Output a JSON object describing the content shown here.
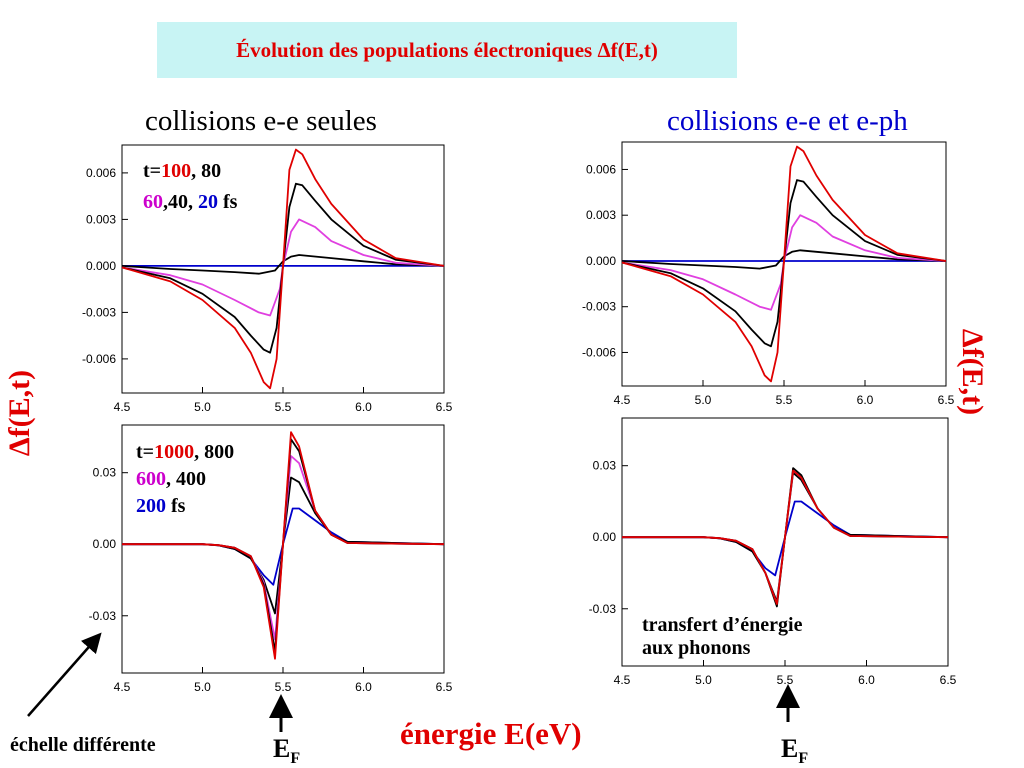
{
  "title": "Évolution des populations électroniques Δf(E,t)",
  "headers": {
    "left": "collisions e-e seules",
    "right": "collisions e-e et e-ph"
  },
  "ylabel": "Δf(E,t)",
  "xlabel": "énergie E(eV)",
  "ef": {
    "main": "E",
    "sub": "F"
  },
  "echelle_note": "échelle différente",
  "transfert_note": [
    "transfert d’énergie",
    "aux phonons"
  ],
  "legends": {
    "top": [
      [
        {
          "t": "t=",
          "c": "#000000"
        },
        {
          "t": "100",
          "c": "#e00000"
        },
        {
          "t": ", 80",
          "c": "#000000"
        }
      ],
      [
        {
          "t": "60",
          "c": "#cc00cc"
        },
        {
          "t": ",40, ",
          "c": "#000000"
        },
        {
          "t": "20",
          "c": "#0000cc"
        },
        {
          "t": " fs",
          "c": "#000000"
        }
      ]
    ],
    "bottom": [
      [
        {
          "t": "t=",
          "c": "#000000"
        },
        {
          "t": "1000",
          "c": "#e00000"
        },
        {
          "t": ", 800",
          "c": "#000000"
        }
      ],
      [
        {
          "t": "600",
          "c": "#cc00cc"
        },
        {
          "t": ", 400",
          "c": "#000000"
        }
      ],
      [
        {
          "t": "200",
          "c": "#0000cc"
        },
        {
          "t": " fs",
          "c": "#000000"
        }
      ]
    ]
  },
  "colors": {
    "red": "#e00000",
    "black": "#000000",
    "magenta": "#e040e0",
    "blue": "#0000cc"
  },
  "chart_data": [
    {
      "id": "top-left",
      "type": "line",
      "xlim": [
        4.5,
        6.5
      ],
      "ylim": [
        -0.0082,
        0.0078
      ],
      "xticks": [
        4.5,
        5.0,
        5.5,
        6.0,
        6.5
      ],
      "xtick_labels": [
        "4.5",
        "5.0",
        "5.5",
        "6.0",
        "6.5"
      ],
      "yticks": [
        0.006,
        0.003,
        0.0,
        -0.003,
        -0.006
      ],
      "ytick_labels": [
        "0.006",
        "0.003",
        "0.000",
        "-0.003",
        "-0.006"
      ],
      "series": [
        {
          "color": "#0000cc",
          "x": [
            4.5,
            5.0,
            5.5,
            6.0,
            6.5
          ],
          "y": [
            0,
            0,
            0,
            0,
            0
          ]
        },
        {
          "color": "#000000",
          "x": [
            4.5,
            4.8,
            5.0,
            5.2,
            5.35,
            5.45,
            5.5,
            5.55,
            5.6,
            5.8,
            6.0,
            6.2,
            6.5
          ],
          "y": [
            0,
            -0.0002,
            -0.0003,
            -0.0004,
            -0.0005,
            -0.0003,
            0.0003,
            0.0006,
            0.0007,
            0.0005,
            0.0003,
            0.0001,
            0
          ]
        },
        {
          "color": "#e040e0",
          "x": [
            4.5,
            4.8,
            5.0,
            5.2,
            5.35,
            5.42,
            5.48,
            5.5,
            5.55,
            5.6,
            5.7,
            5.8,
            6.0,
            6.2,
            6.5
          ],
          "y": [
            -0.0001,
            -0.0006,
            -0.0012,
            -0.0022,
            -0.003,
            -0.0032,
            -0.0015,
            0,
            0.0022,
            0.003,
            0.0025,
            0.0016,
            0.0007,
            0.0002,
            0
          ]
        },
        {
          "color": "#000000",
          "x": [
            4.5,
            4.8,
            5.0,
            5.2,
            5.3,
            5.38,
            5.42,
            5.46,
            5.5,
            5.54,
            5.58,
            5.62,
            5.7,
            5.8,
            6.0,
            6.2,
            6.5
          ],
          "y": [
            -0.0001,
            -0.0008,
            -0.0018,
            -0.0033,
            -0.0045,
            -0.0054,
            -0.0056,
            -0.004,
            0,
            0.0038,
            0.0053,
            0.0052,
            0.0042,
            0.003,
            0.0013,
            0.0004,
            0
          ]
        },
        {
          "color": "#e00000",
          "x": [
            4.5,
            4.8,
            5.0,
            5.2,
            5.3,
            5.38,
            5.42,
            5.46,
            5.5,
            5.54,
            5.58,
            5.62,
            5.7,
            5.8,
            6.0,
            6.2,
            6.5
          ],
          "y": [
            -0.0001,
            -0.001,
            -0.0022,
            -0.004,
            -0.0056,
            -0.0075,
            -0.0079,
            -0.006,
            0,
            0.0062,
            0.0075,
            0.0072,
            0.0056,
            0.004,
            0.0017,
            0.0005,
            0
          ]
        }
      ]
    },
    {
      "id": "top-right",
      "type": "line",
      "xlim": [
        4.5,
        6.5
      ],
      "ylim": [
        -0.0082,
        0.0078
      ],
      "xticks": [
        4.5,
        5.0,
        5.5,
        6.0,
        6.5
      ],
      "xtick_labels": [
        "4.5",
        "5.0",
        "5.5",
        "6.0",
        "6.5"
      ],
      "yticks": [
        0.006,
        0.003,
        0.0,
        -0.003,
        -0.006
      ],
      "ytick_labels": [
        "0.006",
        "0.003",
        "0.000",
        "-0.003",
        "-0.006"
      ],
      "series": [
        {
          "color": "#0000cc",
          "x": [
            4.5,
            5.0,
            5.5,
            6.0,
            6.5
          ],
          "y": [
            0,
            0,
            0,
            0,
            0
          ]
        },
        {
          "color": "#000000",
          "x": [
            4.5,
            4.8,
            5.0,
            5.2,
            5.35,
            5.45,
            5.5,
            5.55,
            5.6,
            5.8,
            6.0,
            6.2,
            6.5
          ],
          "y": [
            0,
            -0.0002,
            -0.0003,
            -0.0004,
            -0.0005,
            -0.0003,
            0.0003,
            0.0006,
            0.0007,
            0.0005,
            0.0003,
            0.0001,
            0
          ]
        },
        {
          "color": "#e040e0",
          "x": [
            4.5,
            4.8,
            5.0,
            5.2,
            5.35,
            5.42,
            5.48,
            5.5,
            5.55,
            5.6,
            5.7,
            5.8,
            6.0,
            6.2,
            6.5
          ],
          "y": [
            -0.0001,
            -0.0006,
            -0.0012,
            -0.0022,
            -0.003,
            -0.0032,
            -0.0015,
            0,
            0.0022,
            0.003,
            0.0025,
            0.0016,
            0.0007,
            0.0002,
            0
          ]
        },
        {
          "color": "#000000",
          "x": [
            4.5,
            4.8,
            5.0,
            5.2,
            5.3,
            5.38,
            5.42,
            5.46,
            5.5,
            5.54,
            5.58,
            5.62,
            5.7,
            5.8,
            6.0,
            6.2,
            6.5
          ],
          "y": [
            -0.0001,
            -0.0008,
            -0.0018,
            -0.0033,
            -0.0045,
            -0.0054,
            -0.0056,
            -0.004,
            0,
            0.0038,
            0.0053,
            0.0052,
            0.0042,
            0.003,
            0.0013,
            0.0004,
            0
          ]
        },
        {
          "color": "#e00000",
          "x": [
            4.5,
            4.8,
            5.0,
            5.2,
            5.3,
            5.38,
            5.42,
            5.46,
            5.5,
            5.54,
            5.58,
            5.62,
            5.7,
            5.8,
            6.0,
            6.2,
            6.5
          ],
          "y": [
            -0.0001,
            -0.001,
            -0.0022,
            -0.004,
            -0.0056,
            -0.0075,
            -0.0079,
            -0.006,
            0,
            0.0062,
            0.0075,
            0.0072,
            0.0056,
            0.004,
            0.0017,
            0.0005,
            0
          ]
        }
      ]
    },
    {
      "id": "bottom-left",
      "type": "line",
      "xlim": [
        4.5,
        6.5
      ],
      "ylim": [
        -0.054,
        0.05
      ],
      "xticks": [
        4.5,
        5.0,
        5.5,
        6.0,
        6.5
      ],
      "xtick_labels": [
        "4.5",
        "5.0",
        "5.5",
        "6.0",
        "6.5"
      ],
      "yticks": [
        0.03,
        0.0,
        -0.03
      ],
      "ytick_labels": [
        "0.03",
        "0.00",
        "-0.03"
      ],
      "series": [
        {
          "color": "#0000cc",
          "x": [
            4.5,
            5.0,
            5.1,
            5.2,
            5.3,
            5.38,
            5.44,
            5.5,
            5.56,
            5.6,
            5.7,
            5.8,
            5.9,
            6.5
          ],
          "y": [
            0,
            0,
            -0.0005,
            -0.002,
            -0.006,
            -0.013,
            -0.017,
            0,
            0.015,
            0.015,
            0.01,
            0.005,
            0.001,
            0
          ]
        },
        {
          "color": "#000000",
          "x": [
            4.5,
            5.0,
            5.1,
            5.2,
            5.3,
            5.38,
            5.45,
            5.5,
            5.55,
            5.6,
            5.7,
            5.8,
            5.9,
            6.5
          ],
          "y": [
            0,
            0,
            -0.0005,
            -0.002,
            -0.006,
            -0.015,
            -0.029,
            0,
            0.028,
            0.026,
            0.013,
            0.004,
            0.001,
            0
          ]
        },
        {
          "color": "#e040e0",
          "x": [
            4.5,
            5.0,
            5.1,
            5.2,
            5.3,
            5.38,
            5.45,
            5.5,
            5.55,
            5.6,
            5.7,
            5.8,
            5.9,
            6.5
          ],
          "y": [
            0,
            0,
            -0.0004,
            -0.0015,
            -0.005,
            -0.016,
            -0.04,
            0,
            0.037,
            0.034,
            0.014,
            0.004,
            0.0005,
            0
          ]
        },
        {
          "color": "#000000",
          "x": [
            4.5,
            5.0,
            5.1,
            5.2,
            5.3,
            5.38,
            5.45,
            5.5,
            5.55,
            5.6,
            5.7,
            5.8,
            5.9,
            6.5
          ],
          "y": [
            0,
            0,
            -0.0004,
            -0.0015,
            -0.005,
            -0.017,
            -0.045,
            0,
            0.044,
            0.039,
            0.014,
            0.004,
            0.0005,
            0
          ]
        },
        {
          "color": "#e00000",
          "x": [
            4.5,
            5.0,
            5.1,
            5.2,
            5.3,
            5.38,
            5.45,
            5.5,
            5.55,
            5.6,
            5.7,
            5.8,
            5.9,
            6.5
          ],
          "y": [
            0,
            0,
            -0.0004,
            -0.0015,
            -0.005,
            -0.018,
            -0.048,
            0,
            0.047,
            0.041,
            0.014,
            0.004,
            0.0005,
            0
          ]
        }
      ]
    },
    {
      "id": "bottom-right",
      "type": "line",
      "xlim": [
        4.5,
        6.5
      ],
      "ylim": [
        -0.054,
        0.05
      ],
      "xticks": [
        4.5,
        5.0,
        5.5,
        6.0,
        6.5
      ],
      "xtick_labels": [
        "4.5",
        "5.0",
        "5.5",
        "6.0",
        "6.5"
      ],
      "yticks": [
        0.03,
        0.0,
        -0.03
      ],
      "ytick_labels": [
        "0.03",
        "0.00",
        "-0.03"
      ],
      "series": [
        {
          "color": "#0000cc",
          "x": [
            4.5,
            5.0,
            5.1,
            5.2,
            5.3,
            5.38,
            5.44,
            5.5,
            5.56,
            5.6,
            5.7,
            5.8,
            5.9,
            6.5
          ],
          "y": [
            0,
            0,
            -0.0005,
            -0.002,
            -0.006,
            -0.013,
            -0.016,
            0,
            0.015,
            0.015,
            0.01,
            0.005,
            0.001,
            0
          ]
        },
        {
          "color": "#000000",
          "x": [
            4.5,
            5.0,
            5.1,
            5.2,
            5.3,
            5.38,
            5.45,
            5.5,
            5.55,
            5.6,
            5.7,
            5.8,
            5.9,
            6.5
          ],
          "y": [
            0,
            0,
            -0.0005,
            -0.002,
            -0.006,
            -0.015,
            -0.027,
            0,
            0.027,
            0.024,
            0.012,
            0.004,
            0.001,
            0
          ]
        },
        {
          "color": "#e040e0",
          "x": [
            4.5,
            5.0,
            5.1,
            5.2,
            5.3,
            5.38,
            5.45,
            5.5,
            5.55,
            5.6,
            5.7,
            5.8,
            5.9,
            6.5
          ],
          "y": [
            0,
            0,
            -0.0004,
            -0.0015,
            -0.005,
            -0.015,
            -0.028,
            0,
            0.028,
            0.025,
            0.012,
            0.004,
            0.0005,
            0
          ]
        },
        {
          "color": "#000000",
          "x": [
            4.5,
            5.0,
            5.1,
            5.2,
            5.3,
            5.38,
            5.45,
            5.5,
            5.55,
            5.6,
            5.7,
            5.8,
            5.9,
            6.5
          ],
          "y": [
            0,
            0,
            -0.0004,
            -0.0015,
            -0.005,
            -0.015,
            -0.029,
            0,
            0.029,
            0.026,
            0.012,
            0.004,
            0.0005,
            0
          ]
        },
        {
          "color": "#e00000",
          "x": [
            4.5,
            5.0,
            5.1,
            5.2,
            5.3,
            5.38,
            5.45,
            5.5,
            5.55,
            5.6,
            5.7,
            5.8,
            5.9,
            6.5
          ],
          "y": [
            0,
            0,
            -0.0004,
            -0.0015,
            -0.005,
            -0.015,
            -0.028,
            0,
            0.028,
            0.025,
            0.012,
            0.004,
            0.0005,
            0
          ]
        }
      ]
    }
  ]
}
